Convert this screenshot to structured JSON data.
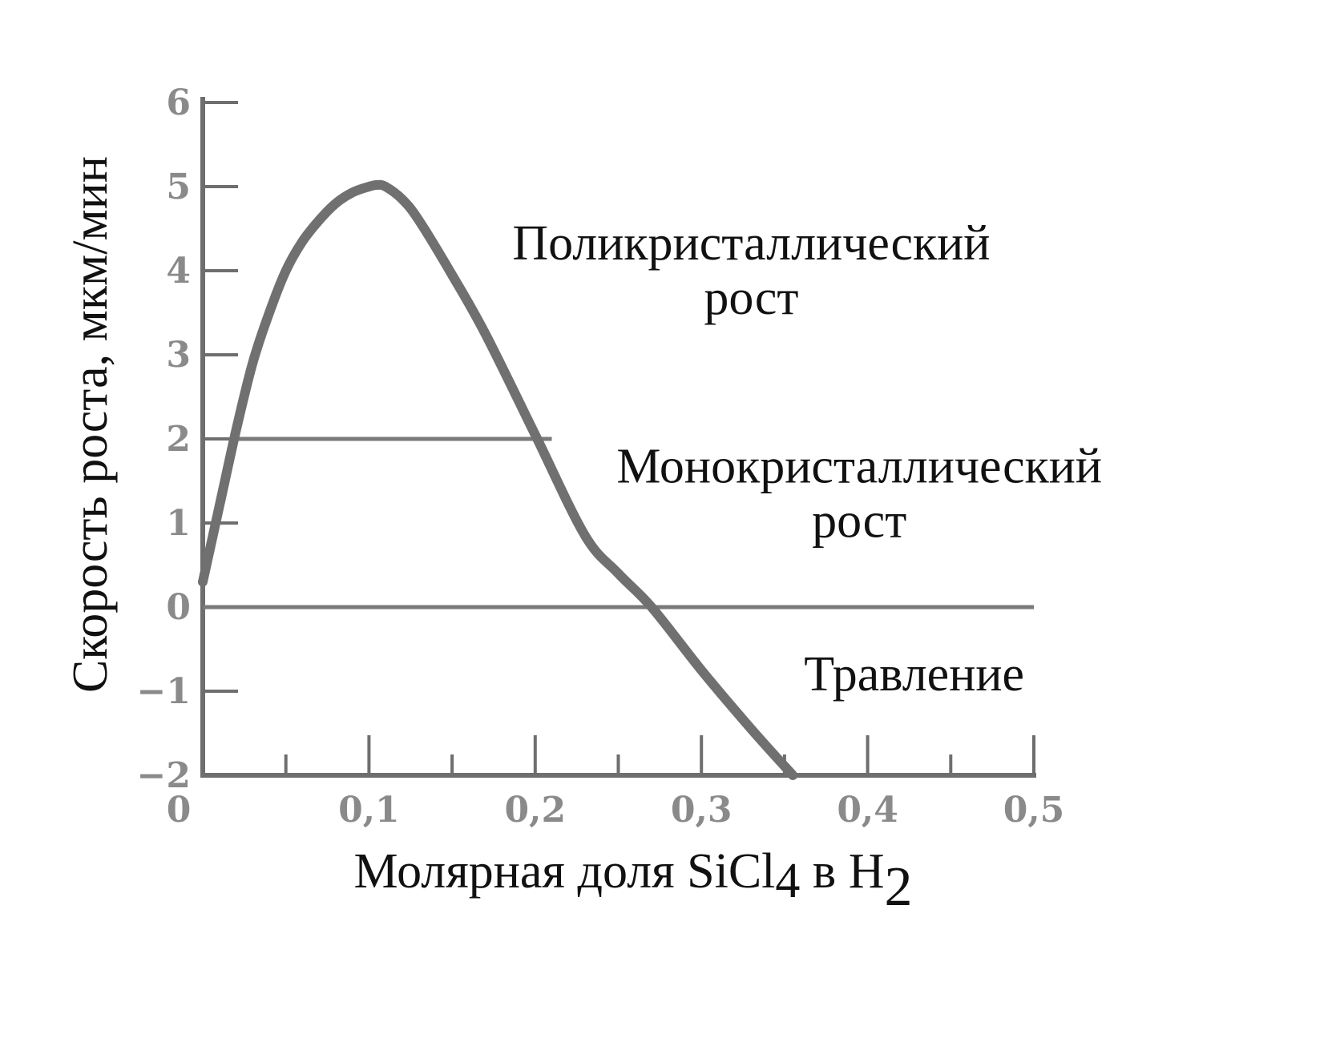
{
  "chart_data": {
    "type": "line",
    "xlabel": {
      "text": "Молярная доля SiCl",
      "sub1": "4",
      "mid": " в H",
      "sub2": "2"
    },
    "ylabel": "Скорость роста, мкм/мин",
    "xlim": [
      0,
      0.5
    ],
    "ylim": [
      -2,
      6
    ],
    "x_ticks": [
      "0",
      "0,1",
      "0,2",
      "0,3",
      "0,4",
      "0,5"
    ],
    "x_tick_values": [
      0,
      0.1,
      0.2,
      0.3,
      0.4,
      0.5
    ],
    "x_minor_tick_values": [
      0.05,
      0.15,
      0.25,
      0.35,
      0.45
    ],
    "y_ticks": [
      "6",
      "5",
      "4",
      "3",
      "2",
      "1",
      "0",
      "−1",
      "−2"
    ],
    "y_tick_values": [
      6,
      5,
      4,
      3,
      2,
      1,
      0,
      -1,
      -2
    ],
    "series": [
      {
        "x": [
          0.0,
          0.01,
          0.02,
          0.03,
          0.04,
          0.05,
          0.06,
          0.07,
          0.08,
          0.09,
          0.1,
          0.105,
          0.11,
          0.12,
          0.13,
          0.15,
          0.17,
          0.2,
          0.23,
          0.25,
          0.27,
          0.3,
          0.33,
          0.355
        ],
        "values": [
          0.3,
          1.2,
          2.1,
          2.9,
          3.5,
          4.0,
          4.35,
          4.6,
          4.8,
          4.93,
          5.0,
          5.02,
          5.0,
          4.85,
          4.6,
          3.95,
          3.25,
          2.05,
          0.85,
          0.4,
          0.0,
          -0.75,
          -1.45,
          -2.0
        ]
      }
    ],
    "reference_lines": [
      {
        "y": 2,
        "x_from": 0.02,
        "x_to": 0.21
      },
      {
        "y": 0,
        "x_from": 0,
        "x_to": 0.5
      }
    ],
    "annotations": [
      {
        "lines": [
          "Поликристаллический",
          "рост"
        ],
        "x": 0.33,
        "y": 4.0
      },
      {
        "lines": [
          "Монокристаллический",
          "рост"
        ],
        "x": 0.395,
        "y": 1.35
      },
      {
        "lines": [
          "Травление"
        ],
        "x": 0.428,
        "y": -0.8
      }
    ],
    "grid": false,
    "legend": "none"
  }
}
